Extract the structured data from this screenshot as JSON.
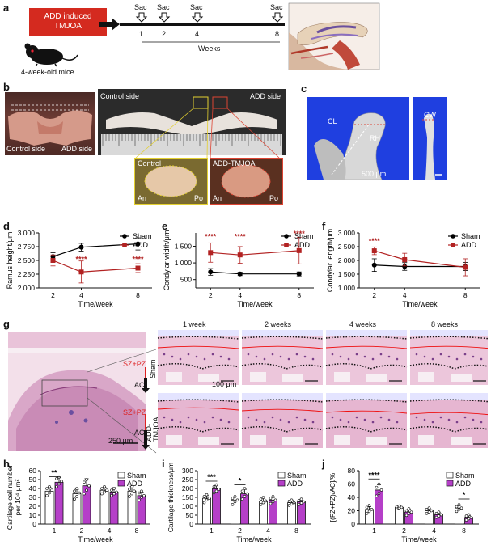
{
  "figure": {
    "panel_labels": [
      "a",
      "b",
      "c",
      "d",
      "e",
      "f",
      "g",
      "h",
      "i",
      "j"
    ],
    "a": {
      "model_box": "ADD induced\nTMJOA",
      "mouse_caption": "4-week-old mice",
      "sac_label": "Sac",
      "weeks_ticks": [
        "1",
        "2",
        "4",
        "8"
      ],
      "weeks_label": "Weeks",
      "colors": {
        "box": "#d42a1f"
      }
    },
    "b": {
      "control_side": "Control side",
      "add_side": "ADD side",
      "inset_control": "Control",
      "inset_add": "ADD-TMJOA",
      "an": "An",
      "po": "Po"
    },
    "c": {
      "cl": "CL",
      "rh": "RH",
      "cw": "CW",
      "scale": "500 μm"
    },
    "g": {
      "timepoints": [
        "1 week",
        "2 weeks",
        "4 weeks",
        "8 weeks"
      ],
      "sham": "Sham",
      "add_tmjoa": "ADD-\nTMJOA",
      "sz_pz": "SZ+PZ",
      "ac": "AC",
      "scale_overview": "250 μm",
      "scale_detail": "100 μm"
    }
  },
  "chart_data": [
    {
      "panel": "d",
      "type": "line",
      "ylabel": "Ramus height/μm",
      "xlabel": "Time/week",
      "x": [
        2,
        4,
        8
      ],
      "xlim": [
        1,
        9
      ],
      "ylim": [
        2000,
        3000
      ],
      "yticks": [
        "2 000",
        "2 250",
        "2 500",
        "2 750",
        "3 000"
      ],
      "ytick_values": [
        2000,
        2250,
        2500,
        2750,
        3000
      ],
      "series": [
        {
          "name": "Sham",
          "values": [
            2570,
            2740,
            2800
          ],
          "err": [
            70,
            70,
            110
          ],
          "color": "#000000",
          "marker": "circle"
        },
        {
          "name": "ADD",
          "values": [
            2500,
            2290,
            2360
          ],
          "err": [
            100,
            200,
            80
          ],
          "color": "#b22222",
          "marker": "square"
        }
      ],
      "significance": [
        {
          "x": 4,
          "y": 2480,
          "label": "****"
        },
        {
          "x": 8,
          "y": 2480,
          "label": "****"
        }
      ],
      "legend": "top-right"
    },
    {
      "panel": "e",
      "type": "line",
      "ylabel": "Condylar width/μm",
      "xlabel": "Time/week",
      "x": [
        2,
        4,
        8
      ],
      "xlim": [
        1,
        9
      ],
      "ylim": [
        250,
        1900
      ],
      "yticks": [
        "500",
        "1 000",
        "1 500"
      ],
      "ytick_values": [
        500,
        1000,
        1500
      ],
      "series": [
        {
          "name": "Sham",
          "values": [
            730,
            670,
            670
          ],
          "err": [
            100,
            50,
            60
          ],
          "color": "#000000",
          "marker": "circle"
        },
        {
          "name": "ADD",
          "values": [
            1310,
            1240,
            1370
          ],
          "err": [
            290,
            250,
            400
          ],
          "color": "#b22222",
          "marker": "square"
        }
      ],
      "significance": [
        {
          "x": 2,
          "y": 1720,
          "label": "****"
        },
        {
          "x": 4,
          "y": 1720,
          "label": "****"
        },
        {
          "x": 8,
          "y": 1800,
          "label": "****"
        }
      ],
      "legend": "top-right"
    },
    {
      "panel": "f",
      "type": "line",
      "ylabel": "Condylar length/μm",
      "xlabel": "Time/week",
      "x": [
        2,
        4,
        8
      ],
      "xlim": [
        1,
        9
      ],
      "ylim": [
        1000,
        3000
      ],
      "yticks": [
        "1 000",
        "1 500",
        "2 000",
        "2 500",
        "3 000"
      ],
      "ytick_values": [
        1000,
        1500,
        2000,
        2500,
        3000
      ],
      "series": [
        {
          "name": "Sham",
          "values": [
            1830,
            1780,
            1780
          ],
          "err": [
            230,
            140,
            150
          ],
          "color": "#000000",
          "marker": "circle"
        },
        {
          "name": "ADD",
          "values": [
            2350,
            2030,
            1750
          ],
          "err": [
            140,
            230,
            310
          ],
          "color": "#b22222",
          "marker": "square"
        }
      ],
      "significance": [
        {
          "x": 2,
          "y": 2620,
          "label": "****"
        }
      ],
      "legend": "top-right"
    },
    {
      "panel": "h",
      "type": "bar",
      "ylabel": "Cartilage cell number\nper 10⁴ μm²",
      "xlabel": "Time/week",
      "categories": [
        "1",
        "2",
        "4",
        "8"
      ],
      "ylim": [
        0,
        60
      ],
      "yticks": [
        "0",
        "10",
        "20",
        "30",
        "40",
        "50",
        "60"
      ],
      "ytick_values": [
        0,
        10,
        20,
        30,
        40,
        50,
        60
      ],
      "series": [
        {
          "name": "Sham",
          "values": [
            37,
            34,
            38,
            37
          ],
          "err": [
            4,
            5,
            3,
            5
          ],
          "color": "#ffffff"
        },
        {
          "name": "ADD",
          "values": [
            47,
            43,
            36,
            32
          ],
          "err": [
            5,
            8,
            5,
            4
          ],
          "color": "#b53fc8"
        }
      ],
      "points": {
        "Sham": [
          [
            32,
            35,
            38,
            40,
            42
          ],
          [
            28,
            31,
            35,
            37,
            40
          ],
          [
            34,
            36,
            38,
            40,
            42
          ],
          [
            31,
            34,
            37,
            39,
            42
          ]
        ],
        "ADD": [
          [
            42,
            45,
            48,
            51,
            53
          ],
          [
            34,
            38,
            43,
            47,
            50
          ],
          [
            32,
            34,
            36,
            38,
            40
          ],
          [
            27,
            30,
            32,
            35,
            37
          ]
        ]
      },
      "significance": [
        {
          "group": 0,
          "y": 55,
          "label": "**"
        }
      ],
      "legend": "top-right"
    },
    {
      "panel": "i",
      "type": "bar",
      "ylabel": "Cartilage thickness/μm",
      "xlabel": "Time/week",
      "categories": [
        "1",
        "2",
        "4",
        "8"
      ],
      "ylim": [
        0,
        300
      ],
      "yticks": [
        "0",
        "50",
        "100",
        "150",
        "200",
        "250",
        "300"
      ],
      "ytick_values": [
        0,
        50,
        100,
        150,
        200,
        250,
        300
      ],
      "series": [
        {
          "name": "Sham",
          "values": [
            145,
            135,
            130,
            120
          ],
          "err": [
            15,
            18,
            15,
            12
          ],
          "color": "#ffffff"
        },
        {
          "name": "ADD",
          "values": [
            198,
            170,
            135,
            125
          ],
          "err": [
            18,
            25,
            15,
            12
          ],
          "color": "#b53fc8"
        }
      ],
      "points": {
        "Sham": [
          [
            120,
            135,
            145,
            155,
            165
          ],
          [
            110,
            125,
            135,
            145,
            155
          ],
          [
            110,
            120,
            130,
            140,
            150
          ],
          [
            105,
            112,
            120,
            128,
            135
          ]
        ],
        "ADD": [
          [
            175,
            185,
            195,
            210,
            220
          ],
          [
            140,
            155,
            170,
            185,
            200
          ],
          [
            115,
            125,
            135,
            145,
            155
          ],
          [
            110,
            118,
            125,
            132,
            140
          ]
        ]
      },
      "significance": [
        {
          "group": 0,
          "y": 250,
          "label": "***"
        },
        {
          "group": 1,
          "y": 230,
          "label": "*"
        }
      ],
      "legend": "top-right"
    },
    {
      "panel": "j",
      "type": "bar",
      "ylabel": "[(FZ+PZ)/AC]/%",
      "xlabel": "Time/week",
      "categories": [
        "1",
        "2",
        "4",
        "8"
      ],
      "ylim": [
        0,
        80
      ],
      "yticks": [
        "0",
        "20",
        "40",
        "60",
        "80"
      ],
      "ytick_values": [
        0,
        20,
        40,
        60,
        80
      ],
      "series": [
        {
          "name": "Sham",
          "values": [
            22,
            25,
            20,
            24
          ],
          "err": [
            4,
            2,
            3,
            4
          ],
          "color": "#ffffff"
        },
        {
          "name": "ADD",
          "values": [
            51,
            18,
            14,
            10
          ],
          "err": [
            8,
            4,
            3,
            3
          ],
          "color": "#b53fc8"
        }
      ],
      "points": {
        "Sham": [
          [
            16,
            19,
            22,
            25,
            28
          ],
          [
            23,
            24,
            25,
            26,
            27
          ],
          [
            16,
            18,
            20,
            22,
            24
          ],
          [
            19,
            22,
            24,
            26,
            29
          ]
        ],
        "ADD": [
          [
            42,
            46,
            51,
            55,
            60
          ],
          [
            13,
            16,
            18,
            20,
            23
          ],
          [
            10,
            12,
            14,
            16,
            18
          ],
          [
            6,
            8,
            10,
            12,
            14
          ]
        ]
      },
      "significance": [
        {
          "group": 0,
          "y": 70,
          "label": "****"
        },
        {
          "group": 3,
          "y": 40,
          "label": "*"
        }
      ],
      "legend": "top-right"
    }
  ]
}
